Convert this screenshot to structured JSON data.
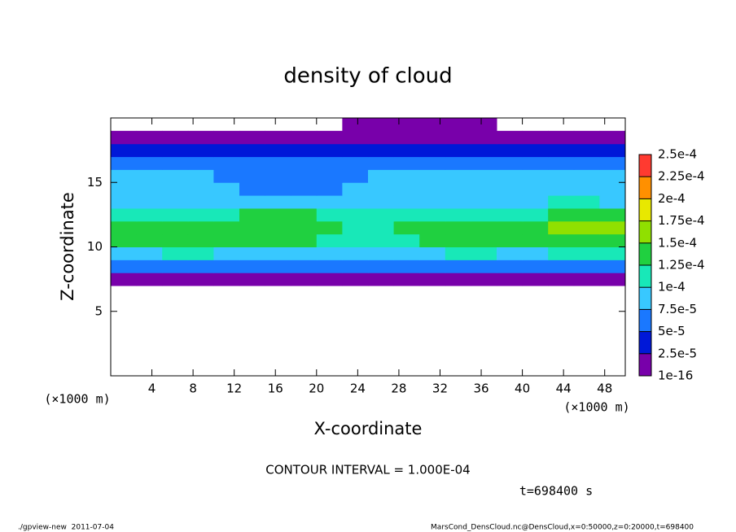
{
  "chart_data": {
    "type": "heatmap",
    "title": "density of cloud",
    "x_label": "X-coordinate",
    "y_label": "Z-coordinate",
    "x_unit": "(×1000 m)",
    "y_unit": "(×1000 m)",
    "xlim": [
      0,
      50
    ],
    "xticks": [
      4,
      8,
      12,
      16,
      20,
      24,
      28,
      32,
      36,
      40,
      44,
      48
    ],
    "ylim": [
      0,
      20
    ],
    "yticks": [
      5,
      10,
      15
    ],
    "xbins": [
      0,
      2.5,
      5,
      7.5,
      10,
      12.5,
      15,
      17.5,
      20,
      22.5,
      25,
      27.5,
      30,
      32.5,
      35,
      37.5,
      40,
      42.5,
      45,
      47.5,
      50
    ],
    "zbins": [
      7,
      8,
      9,
      10,
      11,
      12,
      13,
      14,
      15,
      16,
      17,
      18,
      19,
      20
    ],
    "values": [
      [
        1e-05,
        1e-05,
        1e-05,
        1e-05,
        1e-05,
        1e-05,
        1e-05,
        1e-05,
        1e-05,
        1e-05,
        1e-05,
        1e-05,
        1e-05,
        1e-05,
        1e-05,
        1e-05,
        1e-05,
        1e-05,
        1e-05,
        1e-05
      ],
      [
        6e-05,
        6e-05,
        6e-05,
        6e-05,
        6e-05,
        6e-05,
        6e-05,
        6e-05,
        6e-05,
        6e-05,
        6e-05,
        6e-05,
        6e-05,
        6e-05,
        6e-05,
        6e-05,
        6e-05,
        6e-05,
        6e-05,
        6e-05
      ],
      [
        8e-05,
        8e-05,
        0.00011,
        0.00011,
        8e-05,
        8e-05,
        8e-05,
        8e-05,
        8e-05,
        8e-05,
        8e-05,
        8e-05,
        8e-05,
        0.00011,
        0.00011,
        8e-05,
        8e-05,
        0.00011,
        0.00011,
        0.00011
      ],
      [
        0.00013,
        0.00013,
        0.00013,
        0.00013,
        0.00013,
        0.00013,
        0.00013,
        0.00013,
        0.00011,
        0.00011,
        0.00011,
        0.00011,
        0.00013,
        0.00013,
        0.00013,
        0.00013,
        0.00013,
        0.00013,
        0.00013,
        0.00013
      ],
      [
        0.00013,
        0.00013,
        0.00013,
        0.00013,
        0.00013,
        0.00013,
        0.00013,
        0.00013,
        0.00013,
        0.00011,
        0.00011,
        0.00013,
        0.00013,
        0.00013,
        0.00013,
        0.00013,
        0.00013,
        0.00016,
        0.00016,
        0.00016
      ],
      [
        0.00011,
        0.00011,
        0.00011,
        0.00011,
        0.00011,
        0.00013,
        0.00013,
        0.00013,
        0.00011,
        0.00011,
        0.00011,
        0.00011,
        0.00011,
        0.00011,
        0.00011,
        0.00011,
        0.00011,
        0.00013,
        0.00013,
        0.00013
      ],
      [
        8e-05,
        8e-05,
        8e-05,
        8e-05,
        8e-05,
        8e-05,
        8e-05,
        8e-05,
        8e-05,
        8e-05,
        8e-05,
        8e-05,
        8e-05,
        8e-05,
        8e-05,
        8e-05,
        8e-05,
        0.00011,
        0.00011,
        8e-05
      ],
      [
        8e-05,
        8e-05,
        8e-05,
        8e-05,
        8e-05,
        6e-05,
        6e-05,
        6e-05,
        6e-05,
        8e-05,
        8e-05,
        8e-05,
        8e-05,
        8e-05,
        8e-05,
        8e-05,
        8e-05,
        8e-05,
        8e-05,
        8e-05
      ],
      [
        8e-05,
        8e-05,
        8e-05,
        8e-05,
        6e-05,
        6e-05,
        6e-05,
        6e-05,
        6e-05,
        6e-05,
        8e-05,
        8e-05,
        8e-05,
        8e-05,
        8e-05,
        8e-05,
        8e-05,
        8e-05,
        8e-05,
        8e-05
      ],
      [
        6e-05,
        6e-05,
        6e-05,
        6e-05,
        6e-05,
        6e-05,
        6e-05,
        6e-05,
        6e-05,
        6e-05,
        6e-05,
        6e-05,
        6e-05,
        6e-05,
        6e-05,
        6e-05,
        6e-05,
        6e-05,
        6e-05,
        6e-05
      ],
      [
        3e-05,
        3e-05,
        3e-05,
        3e-05,
        3e-05,
        3e-05,
        3e-05,
        3e-05,
        3e-05,
        3e-05,
        3e-05,
        3e-05,
        3e-05,
        3e-05,
        3e-05,
        3e-05,
        3e-05,
        3e-05,
        3e-05,
        3e-05
      ],
      [
        1e-05,
        1e-05,
        1e-05,
        1e-05,
        1e-05,
        1e-05,
        1e-05,
        1e-05,
        1e-05,
        1e-05,
        1e-05,
        1e-05,
        1e-05,
        1e-05,
        1e-05,
        1e-05,
        1e-05,
        1e-05,
        1e-05,
        1e-05
      ],
      [
        null,
        null,
        null,
        null,
        null,
        null,
        null,
        null,
        null,
        1e-05,
        1e-05,
        1e-05,
        1e-05,
        1e-05,
        1e-05,
        null,
        null,
        null,
        null,
        null
      ]
    ],
    "colorbar": {
      "levels": [
        1e-16,
        {
          "value": 2.5e-05,
          "label": "2.5e-5"
        },
        {
          "value": 5e-05,
          "label": "5e-5"
        },
        {
          "value": 7.5e-05,
          "label": "7.5e-5"
        },
        {
          "value": 0.0001,
          "label": "1e-4"
        },
        {
          "value": 0.000125,
          "label": "1.25e-4"
        },
        {
          "value": 0.00015,
          "label": "1.5e-4"
        },
        {
          "value": 0.000175,
          "label": "1.75e-4"
        },
        {
          "value": 0.0002,
          "label": "2e-4"
        },
        {
          "value": 0.000225,
          "label": "2.25e-4"
        },
        {
          "value": 0.00025,
          "label": "2.5e-4"
        }
      ],
      "colors": [
        "#7800aa",
        "#0018d8",
        "#1a78ff",
        "#38c8ff",
        "#18e8b8",
        "#20d040",
        "#90e000",
        "#e8e800",
        "#ff9000",
        "#ff3a30",
        "#ff9aa0"
      ]
    },
    "contour_note": "CONTOUR INTERVAL = 1.000E-04",
    "time_note": "t=698400 s",
    "footer_left": "./gpview-new  2011-07-04",
    "footer_right": "MarsCond_DensCloud.nc@DensCloud,x=0:50000,z=0:20000,t=698400"
  }
}
